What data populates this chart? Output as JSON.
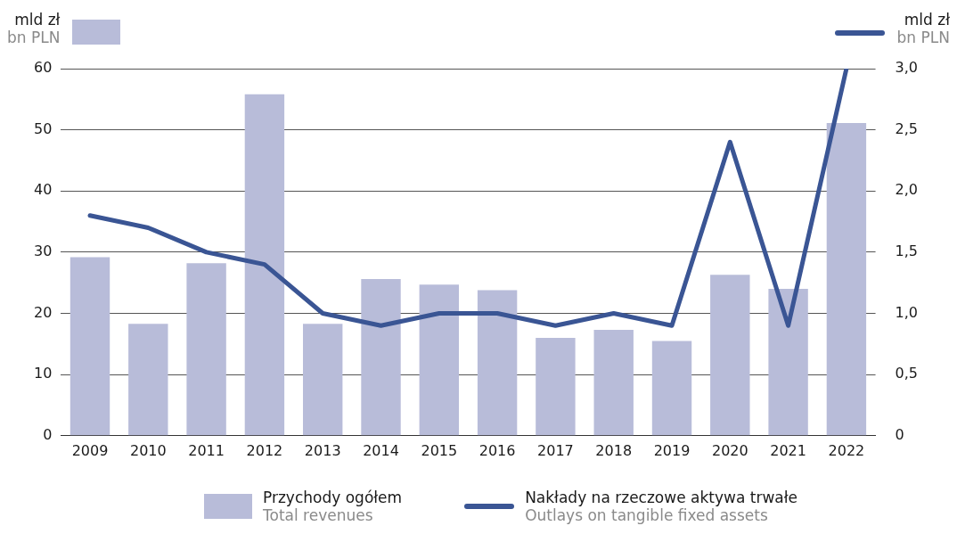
{
  "chart_data": {
    "type": "bar",
    "categories": [
      "2009",
      "2010",
      "2011",
      "2012",
      "2013",
      "2014",
      "2015",
      "2016",
      "2017",
      "2018",
      "2019",
      "2020",
      "2021",
      "2022"
    ],
    "ylabel": "mld zł\nbn PLN",
    "y2label": "mld zł\nbn PLN",
    "series": [
      {
        "name": "Przychody ogółem\nTotal revenues",
        "color": "#b8bcd9",
        "values": [
          29.2,
          18.3,
          28.2,
          55.8,
          18.3,
          25.6,
          24.7,
          23.8,
          16.0,
          17.3,
          15.5,
          26.3,
          24.0,
          51.1
        ]
      },
      {
        "name": "Nakłady na rzeczowe aktywa trwałe\nOutlays on tangible fixed assets",
        "type": "line",
        "axis": "y2",
        "color": "#3a5594",
        "values": [
          1.8,
          1.7,
          1.5,
          1.4,
          1.0,
          0.9,
          1.0,
          1.0,
          0.9,
          1.0,
          0.9,
          2.4,
          0.9,
          3.0
        ]
      }
    ],
    "ylim": [
      0,
      60
    ],
    "yticks": [
      0,
      10,
      20,
      30,
      40,
      50,
      60
    ],
    "y2lim": [
      0,
      3
    ],
    "y2ticks": [
      0,
      {
        "value": 0.5,
        "label": "0,5"
      },
      {
        "value": 1,
        "label": "1,0"
      },
      {
        "value": 1.5,
        "label": "1,5"
      },
      {
        "value": 2,
        "label": "2,0"
      },
      {
        "value": 2.5,
        "label": "2,5"
      },
      {
        "value": 3,
        "label": "3,0"
      }
    ],
    "grid": "y",
    "legend": "bottom",
    "marker": "none",
    "line_style": "solid"
  }
}
